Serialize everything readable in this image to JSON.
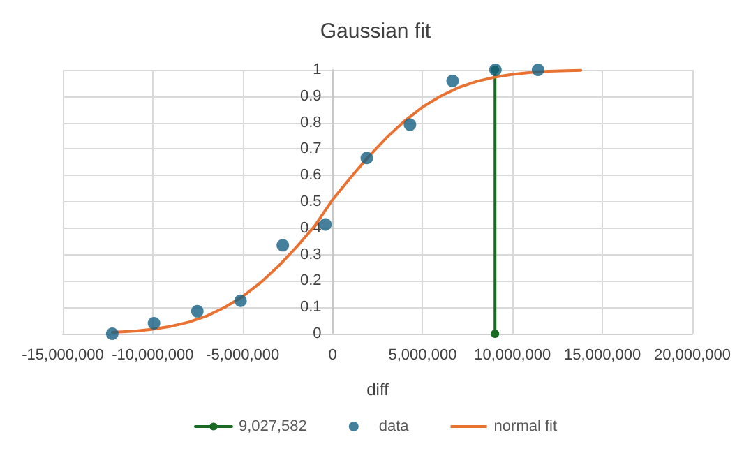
{
  "chart_data": {
    "type": "scatter",
    "title": "Gaussian fit",
    "xlabel": "diff",
    "xlim": [
      -15000000,
      20000000
    ],
    "xticks": [
      {
        "value": -15000000,
        "label": "-15,000,000"
      },
      {
        "value": -10000000,
        "label": "-10,000,000"
      },
      {
        "value": -5000000,
        "label": "-5,000,000"
      },
      {
        "value": 0,
        "label": "0"
      },
      {
        "value": 5000000,
        "label": "5,000,000"
      },
      {
        "value": 10000000,
        "label": "10,000,000"
      },
      {
        "value": 15000000,
        "label": "15,000,000"
      },
      {
        "value": 20000000,
        "label": "20,000,000"
      }
    ],
    "ylim": [
      0,
      1
    ],
    "yticks": [
      0,
      0.1,
      0.2,
      0.3,
      0.4,
      0.5,
      0.6,
      0.7,
      0.8,
      0.9,
      1
    ],
    "grid": true,
    "legend": "bottom",
    "series": [
      {
        "name": "9,027,582",
        "type": "line",
        "color": "#196b24",
        "marker": "circle",
        "line_style": "solid",
        "x": [
          9027582,
          9027582
        ],
        "values": [
          0,
          1
        ]
      },
      {
        "name": "data",
        "type": "scatter",
        "color": "#156082",
        "marker": "circle",
        "x": [
          -12250000,
          -9930000,
          -7520000,
          -5120000,
          -2770000,
          -400000,
          1900000,
          4300000,
          6670000,
          9050000,
          11420000
        ],
        "values": [
          0,
          0.04,
          0.085,
          0.125,
          0.335,
          0.414,
          0.666,
          0.792,
          0.958,
          1,
          1
        ]
      },
      {
        "name": "normal fit",
        "type": "line",
        "color": "#e97132",
        "marker": "none",
        "line_style": "solid",
        "x": [
          -12250000,
          -11000000,
          -10000000,
          -9000000,
          -8000000,
          -7000000,
          -6000000,
          -5000000,
          -4000000,
          -3000000,
          -2000000,
          -1000000,
          0,
          1000000,
          2000000,
          3000000,
          4000000,
          5000000,
          6000000,
          7000000,
          8000000,
          9000000,
          10000000,
          11000000,
          12000000,
          13000000,
          13800000
        ],
        "values": [
          0.005,
          0.01,
          0.017,
          0.028,
          0.044,
          0.067,
          0.1,
          0.141,
          0.194,
          0.257,
          0.329,
          0.408,
          0.508,
          0.592,
          0.671,
          0.743,
          0.806,
          0.859,
          0.9,
          0.933,
          0.956,
          0.972,
          0.983,
          0.99,
          0.995,
          0.997,
          0.998
        ]
      }
    ]
  }
}
